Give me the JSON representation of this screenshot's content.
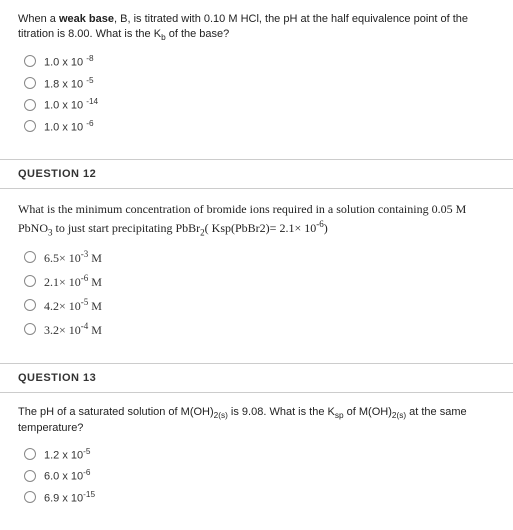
{
  "q11": {
    "prompt_html": "When a <b>weak base</b>, B, is titrated with 0.10 M HCl, the pH at the half equivalence point of the titration is 8.00. What is the K<sub>b</sub> of the base?",
    "options": [
      "1.0 x 10 <sup>-8</sup>",
      "1.8 x 10 <sup>-5</sup>",
      "1.0 x 10 <sup>-14</sup>",
      "1.0 x 10 <sup>-6</sup>"
    ]
  },
  "q12": {
    "header": "QUESTION 12",
    "prompt_html": "What is the minimum concentration of bromide ions required in a solution containing 0.05 M PbNO<sub>3</sub> to just start precipitating PbBr<sub>2</sub>( Ksp(PbBr2)= 2.1&times; 10<sup>-6</sup>)",
    "options": [
      "6.5&times; 10<sup>-3</sup> M",
      "2.1&times; 10<sup>-6</sup> M",
      "4.2&times; 10<sup>-5</sup> M",
      "3.2&times; 10<sup>-4</sup> M"
    ]
  },
  "q13": {
    "header": "QUESTION 13",
    "prompt_html": "The pH of a saturated solution of M(OH)<sub>2(s)</sub> is 9.08. What is the K<sub>sp</sub> of M(OH)<sub>2(s)</sub> at the same temperature?",
    "options": [
      "1.2 x 10<sup>-5</sup>",
      "6.0 x 10<sup>-6</sup>",
      "6.9 x 10<sup>-15</sup>"
    ]
  }
}
